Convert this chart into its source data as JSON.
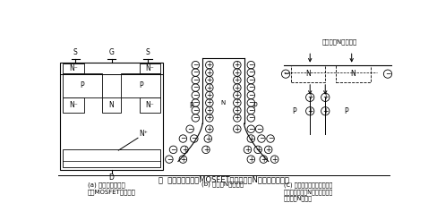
{
  "title": "图  内检横向电场的MOSFET剖面，垂直N区被夹断和导通",
  "bg_color": "#ffffff",
  "line_color": "#000000",
  "fig_width": 4.88,
  "fig_height": 2.46,
  "caption_a": "(a) 内建横向电场的\n高压MOSFET断面结构",
  "caption_b": "(b) 垂直的N区被耗尽",
  "caption_c": "(C) 导电沟道形成后来自源极\n的电子将垂直的N区中正电荷中\n和并恢复N型特征",
  "top_label": "反型后的N导电沟道"
}
